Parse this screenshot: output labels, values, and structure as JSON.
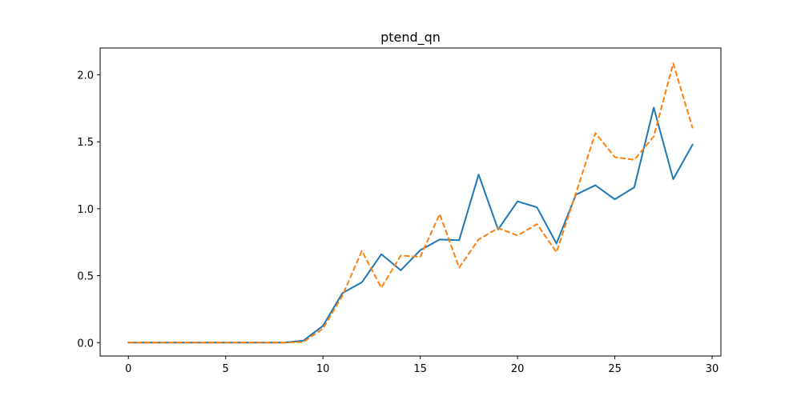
{
  "chart_data": {
    "type": "line",
    "title": "ptend_qn",
    "xlabel": "",
    "ylabel": "",
    "xlim": [
      -1.45,
      30.45
    ],
    "ylim": [
      -0.1,
      2.2
    ],
    "xticks": [
      0,
      5,
      10,
      15,
      20,
      25,
      30
    ],
    "xtick_labels": [
      "0",
      "5",
      "10",
      "15",
      "20",
      "25",
      "30"
    ],
    "yticks": [
      0.0,
      0.5,
      1.0,
      1.5,
      2.0
    ],
    "ytick_labels": [
      "0.0",
      "0.5",
      "1.0",
      "1.5",
      "2.0"
    ],
    "grid": false,
    "legend": "none",
    "x": [
      0,
      1,
      2,
      3,
      4,
      5,
      6,
      7,
      8,
      9,
      10,
      11,
      12,
      13,
      14,
      15,
      16,
      17,
      18,
      19,
      20,
      21,
      22,
      23,
      24,
      25,
      26,
      27,
      28,
      29
    ],
    "series": [
      {
        "color": "#1f77b4",
        "style": "solid",
        "values": [
          0,
          0,
          0,
          0,
          0,
          0,
          0,
          0,
          0,
          0.015,
          0.125,
          0.37,
          0.45,
          0.66,
          0.54,
          0.69,
          0.77,
          0.765,
          1.255,
          0.845,
          1.055,
          1.01,
          0.74,
          1.105,
          1.175,
          1.07,
          1.16,
          1.755,
          1.22,
          1.48
        ]
      },
      {
        "color": "#ff7f0e",
        "style": "dashed",
        "values": [
          0,
          0,
          0,
          0,
          0,
          0,
          0,
          0,
          0,
          0.005,
          0.105,
          0.35,
          0.685,
          0.41,
          0.65,
          0.64,
          0.96,
          0.56,
          0.77,
          0.855,
          0.8,
          0.885,
          0.675,
          1.115,
          1.565,
          1.385,
          1.365,
          1.54,
          2.085,
          1.6
        ]
      }
    ]
  }
}
